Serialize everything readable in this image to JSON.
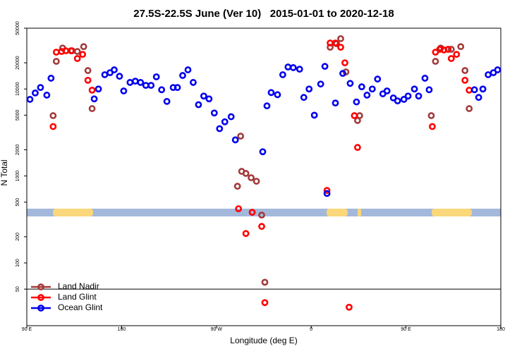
{
  "chart_data": {
    "type": "scatter",
    "title": "27.5S-22.5S June (Ver 10)   2015-01-01 to 2020-12-18",
    "xlabel": "Longitude (deg E)",
    "ylabel": "N Total",
    "xlim": [
      90,
      540
    ],
    "ylim": [
      19,
      50000
    ],
    "log_y": true,
    "legend": "lower left",
    "hline": 50,
    "xticks": [
      {
        "value": 90,
        "label": "90 E"
      },
      {
        "value": 180,
        "label": "180"
      },
      {
        "value": 270,
        "label": "90 W"
      },
      {
        "value": 360,
        "label": "0"
      },
      {
        "value": 450,
        "label": "90 E"
      },
      {
        "value": 540,
        "label": "180"
      }
    ],
    "yticks": [
      50,
      100,
      200,
      500,
      1000,
      2000,
      5000,
      10000,
      20000,
      50000
    ],
    "series": [
      {
        "name": "Land Nadir",
        "color": "#a33a3a",
        "x": [
          115,
          118,
          124,
          133,
          138,
          144,
          148,
          152,
          290,
          293,
          294,
          298,
          303,
          308,
          313,
          316,
          378,
          384,
          388,
          393,
          404,
          406,
          474,
          478,
          483,
          493,
          502,
          506,
          510
        ],
        "values": [
          4940,
          20800,
          29600,
          27500,
          27000,
          30700,
          16300,
          5950,
          762,
          2870,
          1130,
          1070,
          955,
          870,
          355,
          60,
          30200,
          33200,
          37900,
          15700,
          4340,
          4940,
          4940,
          20800,
          29600,
          28600,
          30700,
          16300,
          5950
        ]
      },
      {
        "name": "Land Glint",
        "color": "#ff0000",
        "x": [
          115,
          118,
          123,
          127,
          132,
          138,
          143,
          148,
          152,
          291,
          298,
          304,
          313,
          316,
          375,
          378,
          383,
          388,
          392,
          396,
          401,
          404,
          475,
          478,
          482,
          486,
          490,
          493,
          498,
          506,
          510
        ],
        "values": [
          3700,
          26500,
          27000,
          27500,
          27500,
          22400,
          25000,
          12600,
          9700,
          420,
          218,
          382,
          263,
          35,
          682,
          33800,
          33800,
          30200,
          20000,
          31,
          4940,
          2130,
          3700,
          26500,
          28600,
          28100,
          28600,
          22400,
          25000,
          12600,
          9700
        ]
      },
      {
        "name": "Ocean Glint",
        "color": "#0000ee",
        "x": [
          93,
          98,
          103,
          109,
          113,
          154,
          158,
          164,
          169,
          173,
          178,
          182,
          188,
          193,
          198,
          203,
          208,
          213,
          218,
          223,
          229,
          233,
          238,
          243,
          248,
          253,
          258,
          263,
          268,
          273,
          278,
          284,
          288,
          314,
          318,
          322,
          328,
          333,
          338,
          343,
          349,
          353,
          358,
          363,
          369,
          373,
          375,
          383,
          390,
          397,
          403,
          408,
          413,
          418,
          423,
          428,
          432,
          438,
          442,
          448,
          452,
          458,
          462,
          468,
          472,
          515,
          519,
          523,
          528,
          533,
          537
        ],
        "values": [
          7600,
          9000,
          10400,
          8500,
          13300,
          7700,
          10000,
          14600,
          15400,
          16600,
          14000,
          9500,
          11900,
          12300,
          11900,
          11000,
          11000,
          13800,
          9800,
          7200,
          10400,
          10400,
          14300,
          16600,
          11900,
          6600,
          8300,
          7700,
          5300,
          3500,
          4200,
          4800,
          2600,
          1900,
          6400,
          9100,
          8600,
          14600,
          17900,
          17600,
          16900,
          8000,
          10000,
          5000,
          11400,
          18200,
          630,
          6900,
          15100,
          11600,
          7100,
          10600,
          8500,
          10000,
          13000,
          8800,
          9500,
          7900,
          7300,
          7600,
          8300,
          10000,
          8300,
          13300,
          9800,
          9800,
          8000,
          10000,
          14600,
          15400,
          16600
        ]
      }
    ]
  }
}
